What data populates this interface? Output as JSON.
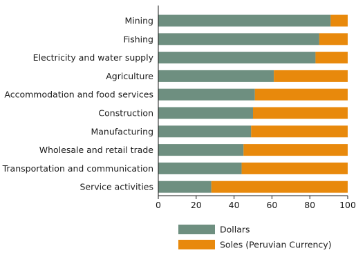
{
  "chart_data": {
    "type": "bar",
    "orientation": "horizontal",
    "stacked": true,
    "categories": [
      "Mining",
      "Fishing",
      "Electricity and water supply",
      "Agriculture",
      "Accommodation and food services",
      "Construction",
      "Manufacturing",
      "Wholesale and retail trade",
      "Transportation and communication",
      "Service activities"
    ],
    "series": [
      {
        "name": "Dollars",
        "color": "#6e8f80",
        "values": [
          91,
          85,
          83,
          61,
          51,
          50,
          49,
          45,
          44,
          28
        ]
      },
      {
        "name": "Soles (Peruvian Currency)",
        "color": "#e8890c",
        "values": [
          9,
          15,
          17,
          39,
          49,
          50,
          51,
          55,
          56,
          72
        ]
      }
    ],
    "xlim": [
      0,
      100
    ],
    "xticks": [
      0,
      20,
      40,
      60,
      80,
      100
    ],
    "grid": false,
    "legend_position": "bottom"
  }
}
